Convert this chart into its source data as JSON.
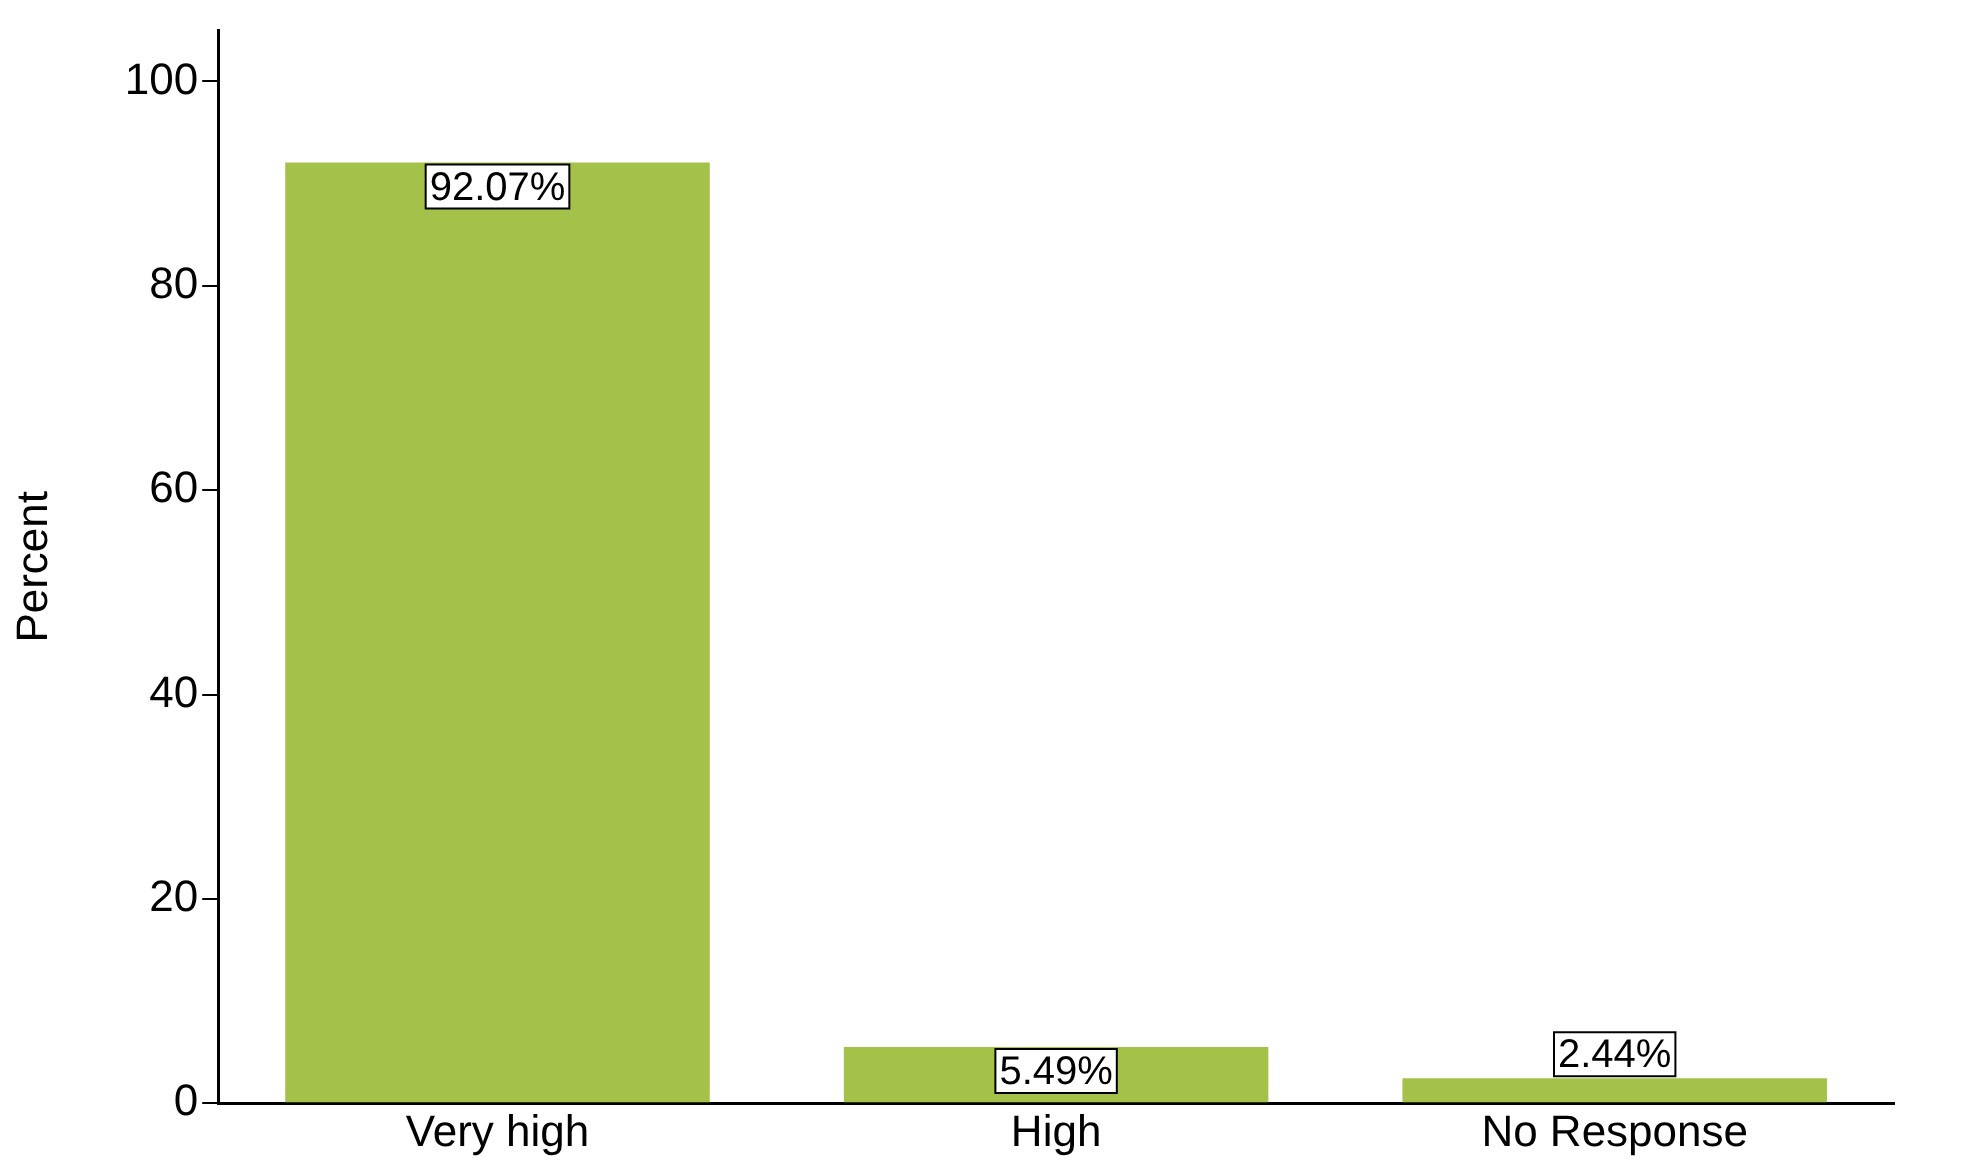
{
  "chart_data": {
    "type": "bar",
    "ylabel": "Percent",
    "categories": [
      "Very high",
      "High",
      "No Response"
    ],
    "values": [
      92.07,
      5.49,
      2.44
    ],
    "value_labels": [
      "92.07%",
      "5.49%",
      "2.44%"
    ],
    "color": "#a4c14a",
    "ylim": [
      0,
      105
    ],
    "yticks": [
      0,
      20,
      40,
      60,
      80,
      100
    ],
    "grid": false,
    "legend": false
  }
}
